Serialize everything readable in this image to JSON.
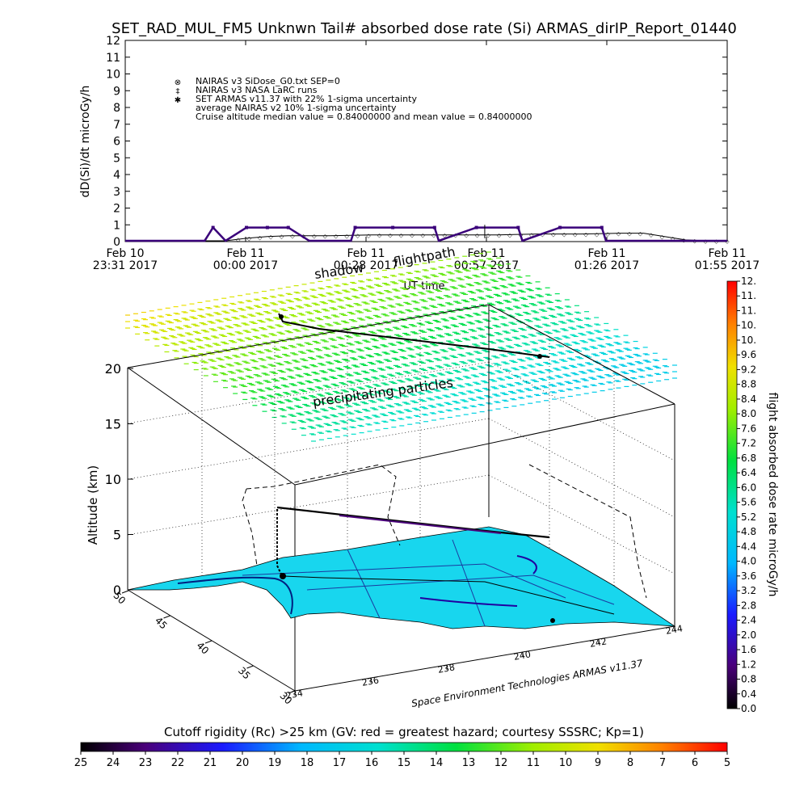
{
  "title": "SET_RAD_MUL_FM5 Unknwn Tail#  absorbed dose rate (Si) ARMAS_dirIP_Report_01440",
  "top_plot": {
    "ylabel": "dD(Si)/dt microGy/h",
    "xlabel": "UT time",
    "yticks": [
      "0",
      "1",
      "2",
      "3",
      "4",
      "5",
      "6",
      "7",
      "8",
      "9",
      "10",
      "11",
      "12"
    ],
    "xticks": [
      {
        "l1": "Feb 10",
        "l2": "23:31 2017"
      },
      {
        "l1": "Feb 11",
        "l2": "00:00 2017"
      },
      {
        "l1": "Feb 11",
        "l2": "00:28 2017"
      },
      {
        "l1": "Feb 11",
        "l2": "00:57 2017"
      },
      {
        "l1": "Feb 11",
        "l2": "01:26 2017"
      },
      {
        "l1": "Feb 11",
        "l2": "01:55 2017"
      }
    ],
    "legend": [
      "NAIRAS v3 SiDose_G0.txt SEP=0",
      "NAIRAS v3 NASA LaRC runs",
      "SET ARMAS v11.37 with 22% 1-sigma uncertainty",
      "average NAIRAS v2 10% 1-sigma uncertainty",
      "Cruise altitude median value = 0.84000000 and mean value = 0.84000000"
    ],
    "legend_symbols": [
      "⊗",
      "‡",
      "✱"
    ]
  },
  "chart_data": [
    {
      "type": "line",
      "title": "SET_RAD_MUL_FM5 Unknwn Tail#  absorbed dose rate (Si) ARMAS_dirIP_Report_01440",
      "xlabel": "UT time",
      "ylabel": "dD(Si)/dt microGy/h",
      "ylim": [
        0,
        12
      ],
      "x_range": [
        "Feb 10 23:31 2017",
        "Feb 11 01:55 2017"
      ],
      "grid": false,
      "legend_position": "top-left",
      "series": [
        {
          "name": "NAIRAS v3 SiDose_G0.txt SEP=0",
          "color": "#000000",
          "x": [
            "23:31",
            "23:50",
            "23:55",
            "00:00",
            "00:05",
            "00:10",
            "00:20",
            "00:30",
            "00:40",
            "00:50",
            "01:00",
            "01:10",
            "01:20",
            "01:30",
            "01:35",
            "01:40",
            "01:45",
            "01:50",
            "01:55"
          ],
          "values": [
            0.05,
            0.05,
            0.05,
            0.2,
            0.3,
            0.35,
            0.35,
            0.4,
            0.4,
            0.4,
            0.4,
            0.45,
            0.45,
            0.5,
            0.5,
            0.3,
            0.1,
            0.05,
            0.05
          ]
        },
        {
          "name": "SET ARMAS v11.37 with 22% 1-sigma uncertainty",
          "color": "#3a007a",
          "x": [
            "23:31",
            "23:50",
            "23:52",
            "23:55",
            "24:00",
            "24:05",
            "24:10",
            "24:15",
            "24:25",
            "24:26",
            "24:35",
            "24:45",
            "24:46",
            "24:55",
            "25:05",
            "25:06",
            "25:15",
            "25:25",
            "25:26",
            "25:55"
          ],
          "values": [
            0.05,
            0.05,
            0.84,
            0.05,
            0.84,
            0.84,
            0.84,
            0.05,
            0.05,
            0.84,
            0.84,
            0.84,
            0.05,
            0.84,
            0.84,
            0.05,
            0.84,
            0.84,
            0.05,
            0.05
          ]
        }
      ]
    },
    {
      "type": "scatter",
      "title": "",
      "zlabel": "Altitude (km)",
      "zticks": [
        0,
        5,
        10,
        15,
        20
      ],
      "xticks_lon": [
        "234",
        "236",
        "238",
        "240",
        "242",
        "244"
      ],
      "yticks_lat": [
        "30",
        "35",
        "40",
        "45",
        "50"
      ],
      "colorbar_label": "flight absorbed dose rate microGy/h",
      "colorbar_ticks": [
        "0.0",
        "0.4",
        "0.8",
        "1.2",
        "1.6",
        "2.0",
        "2.4",
        "2.8",
        "3.2",
        "3.6",
        "4.0",
        "4.4",
        "4.8",
        "5.2",
        "5.6",
        "6.0",
        "6.4",
        "6.8",
        "7.2",
        "7.6",
        "8.0",
        "8.4",
        "8.8",
        "9.2",
        "9.6",
        "10.",
        "10.",
        "11.",
        "11.",
        "12."
      ],
      "colorbar_range": [
        0,
        12
      ]
    },
    {
      "type": "heatmap",
      "title": "Cutoff rigidity (Rc) >25 km (GV: red = greatest hazard; courtesy SSSRC; Kp=1)",
      "ticks": [
        "25",
        "24",
        "23",
        "22",
        "21",
        "20",
        "19",
        "18",
        "17",
        "16",
        "15",
        "14",
        "13",
        "12",
        "11",
        "10",
        "9",
        "8",
        "7",
        "6",
        "5"
      ],
      "range": [
        25,
        5
      ]
    }
  ],
  "annotations": {
    "shadow": "shadow",
    "flightpath": "flightpath",
    "precipitating": "precipitating particles",
    "credit": "Space Environment Technologies ARMAS v11.37"
  },
  "three_d": {
    "zlabel": "Altitude (km)",
    "zticks": [
      "0",
      "5",
      "10",
      "15",
      "20"
    ],
    "lat_ticks": [
      "30",
      "35",
      "40",
      "45",
      "50"
    ],
    "lon_ticks": [
      "234",
      "236",
      "238",
      "240",
      "242",
      "244"
    ],
    "colorbar_label": "flight absorbed dose rate microGy/h",
    "colorbar_ticks": [
      "0.0",
      "0.4",
      "0.8",
      "1.2",
      "1.6",
      "2.0",
      "2.4",
      "2.8",
      "3.2",
      "3.6",
      "4.0",
      "4.4",
      "4.8",
      "5.2",
      "5.6",
      "6.0",
      "6.4",
      "6.8",
      "7.2",
      "7.6",
      "8.0",
      "8.4",
      "8.8",
      "9.2",
      "9.6",
      "10.",
      "10.",
      "11.",
      "11.",
      "12."
    ]
  },
  "rigidity_bar": {
    "label": "Cutoff rigidity (Rc) >25 km (GV: red = greatest hazard; courtesy SSSRC; Kp=1)",
    "ticks": [
      "25",
      "24",
      "23",
      "22",
      "21",
      "20",
      "19",
      "18",
      "17",
      "16",
      "15",
      "14",
      "13",
      "12",
      "11",
      "10",
      "9",
      "8",
      "7",
      "6",
      "5"
    ]
  },
  "colors": {
    "armas": "#3a007a",
    "nairas": "#000000",
    "map": "#18d6ee",
    "frame": "#000000"
  }
}
